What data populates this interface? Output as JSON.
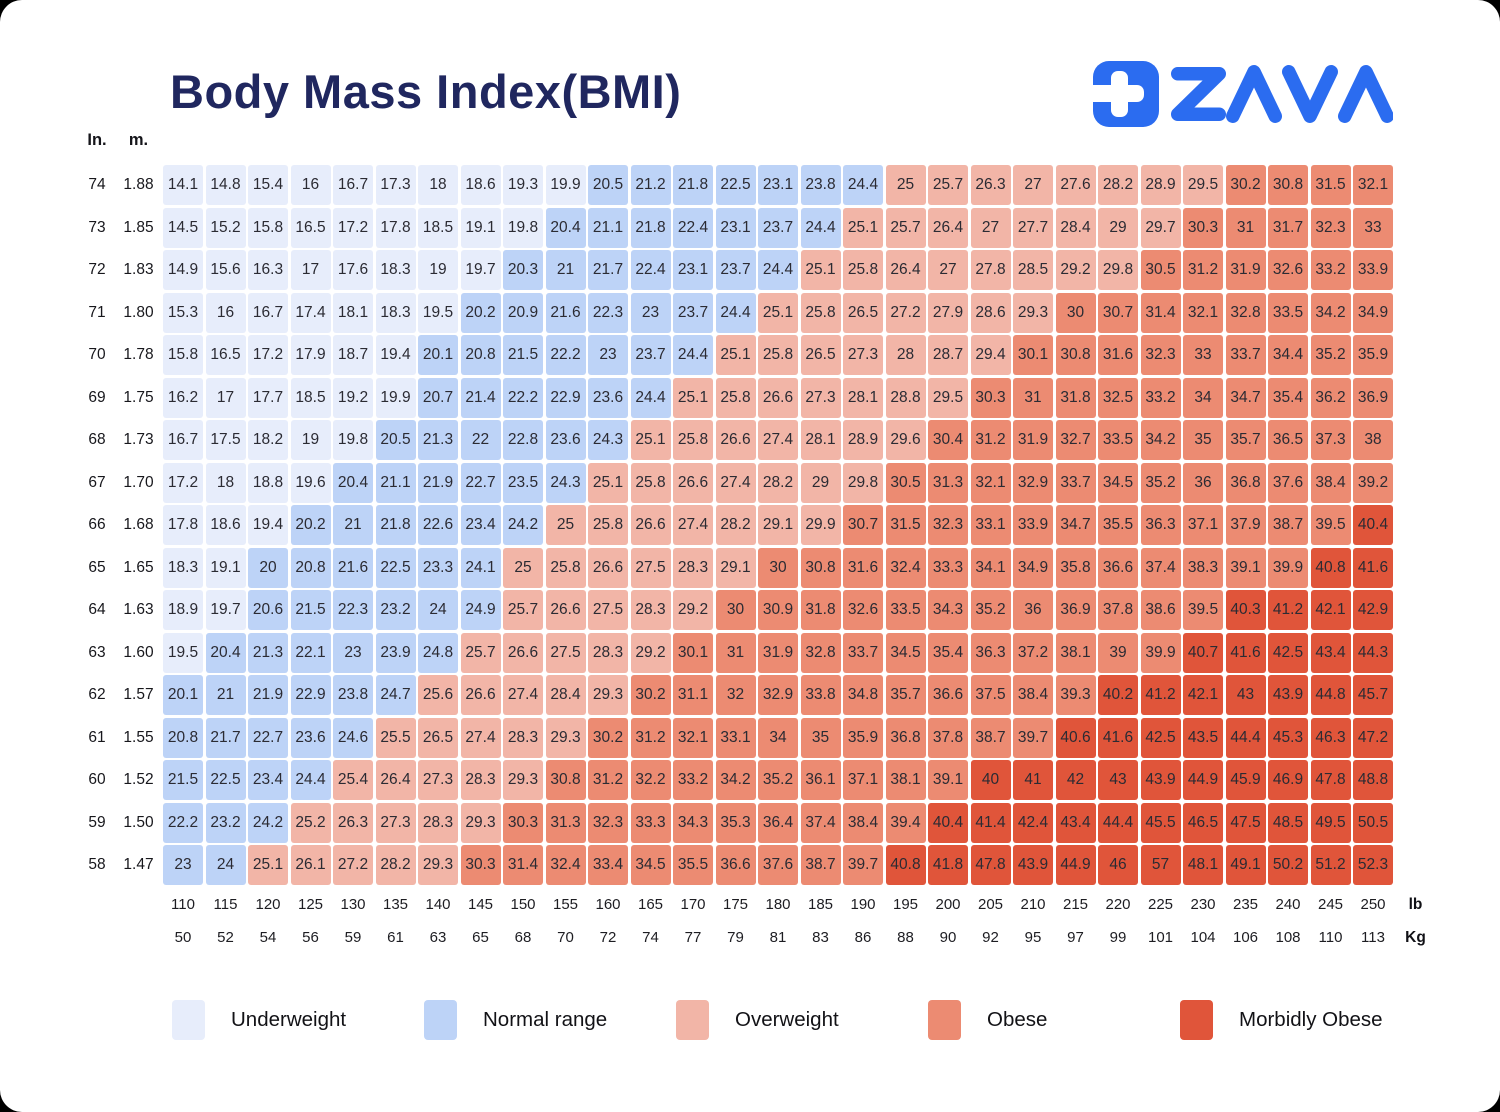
{
  "page": {
    "title": "Body Mass Index(BMI)",
    "brand": "ZAVA"
  },
  "axes": {
    "in": "In.",
    "m": "m.",
    "lb": "lb",
    "kg": "Kg"
  },
  "chart_data": {
    "type": "heatmap",
    "title": "Body Mass Index(BMI)",
    "x_axis_label_lb": "lb",
    "x_axis_label_kg": "Kg",
    "y_axis_label_in": "In.",
    "y_axis_label_m": "m.",
    "weights_lb": [
      110,
      115,
      120,
      125,
      130,
      135,
      140,
      145,
      150,
      155,
      160,
      165,
      170,
      175,
      180,
      185,
      190,
      195,
      200,
      205,
      210,
      215,
      220,
      225,
      230,
      235,
      240,
      245,
      250
    ],
    "weights_kg": [
      50,
      52,
      54,
      56,
      59,
      61,
      63,
      65,
      68,
      70,
      72,
      74,
      77,
      79,
      81,
      83,
      86,
      88,
      90,
      92,
      95,
      97,
      99,
      101,
      104,
      106,
      108,
      110,
      113
    ],
    "rows": [
      {
        "in": "74",
        "m": "1.88",
        "bmi": [
          "14.1",
          "14.8",
          "15.4",
          "16",
          "16.7",
          "17.3",
          "18",
          "18.6",
          "19.3",
          "19.9",
          "20.5",
          "21.2",
          "21.8",
          "22.5",
          "23.1",
          "23.8",
          "24.4",
          "25",
          "25.7",
          "26.3",
          "27",
          "27.6",
          "28.2",
          "28.9",
          "29.5",
          "30.2",
          "30.8",
          "31.5",
          "32.1"
        ]
      },
      {
        "in": "73",
        "m": "1.85",
        "bmi": [
          "14.5",
          "15.2",
          "15.8",
          "16.5",
          "17.2",
          "17.8",
          "18.5",
          "19.1",
          "19.8",
          "20.4",
          "21.1",
          "21.8",
          "22.4",
          "23.1",
          "23.7",
          "24.4",
          "25.1",
          "25.7",
          "26.4",
          "27",
          "27.7",
          "28.4",
          "29",
          "29.7",
          "30.3",
          "31",
          "31.7",
          "32.3",
          "33"
        ]
      },
      {
        "in": "72",
        "m": "1.83",
        "bmi": [
          "14.9",
          "15.6",
          "16.3",
          "17",
          "17.6",
          "18.3",
          "19",
          "19.7",
          "20.3",
          "21",
          "21.7",
          "22.4",
          "23.1",
          "23.7",
          "24.4",
          "25.1",
          "25.8",
          "26.4",
          "27",
          "27.8",
          "28.5",
          "29.2",
          "29.8",
          "30.5",
          "31.2",
          "31.9",
          "32.6",
          "33.2",
          "33.9"
        ]
      },
      {
        "in": "71",
        "m": "1.80",
        "bmi": [
          "15.3",
          "16",
          "16.7",
          "17.4",
          "18.1",
          "18.3",
          "19.5",
          "20.2",
          "20.9",
          "21.6",
          "22.3",
          "23",
          "23.7",
          "24.4",
          "25.1",
          "25.8",
          "26.5",
          "27.2",
          "27.9",
          "28.6",
          "29.3",
          "30",
          "30.7",
          "31.4",
          "32.1",
          "32.8",
          "33.5",
          "34.2",
          "34.9"
        ]
      },
      {
        "in": "70",
        "m": "1.78",
        "bmi": [
          "15.8",
          "16.5",
          "17.2",
          "17.9",
          "18.7",
          "19.4",
          "20.1",
          "20.8",
          "21.5",
          "22.2",
          "23",
          "23.7",
          "24.4",
          "25.1",
          "25.8",
          "26.5",
          "27.3",
          "28",
          "28.7",
          "29.4",
          "30.1",
          "30.8",
          "31.6",
          "32.3",
          "33",
          "33.7",
          "34.4",
          "35.2",
          "35.9"
        ]
      },
      {
        "in": "69",
        "m": "1.75",
        "bmi": [
          "16.2",
          "17",
          "17.7",
          "18.5",
          "19.2",
          "19.9",
          "20.7",
          "21.4",
          "22.2",
          "22.9",
          "23.6",
          "24.4",
          "25.1",
          "25.8",
          "26.6",
          "27.3",
          "28.1",
          "28.8",
          "29.5",
          "30.3",
          "31",
          "31.8",
          "32.5",
          "33.2",
          "34",
          "34.7",
          "35.4",
          "36.2",
          "36.9"
        ]
      },
      {
        "in": "68",
        "m": "1.73",
        "bmi": [
          "16.7",
          "17.5",
          "18.2",
          "19",
          "19.8",
          "20.5",
          "21.3",
          "22",
          "22.8",
          "23.6",
          "24.3",
          "25.1",
          "25.8",
          "26.6",
          "27.4",
          "28.1",
          "28.9",
          "29.6",
          "30.4",
          "31.2",
          "31.9",
          "32.7",
          "33.5",
          "34.2",
          "35",
          "35.7",
          "36.5",
          "37.3",
          "38"
        ]
      },
      {
        "in": "67",
        "m": "1.70",
        "bmi": [
          "17.2",
          "18",
          "18.8",
          "19.6",
          "20.4",
          "21.1",
          "21.9",
          "22.7",
          "23.5",
          "24.3",
          "25.1",
          "25.8",
          "26.6",
          "27.4",
          "28.2",
          "29",
          "29.8",
          "30.5",
          "31.3",
          "32.1",
          "32.9",
          "33.7",
          "34.5",
          "35.2",
          "36",
          "36.8",
          "37.6",
          "38.4",
          "39.2"
        ]
      },
      {
        "in": "66",
        "m": "1.68",
        "bmi": [
          "17.8",
          "18.6",
          "19.4",
          "20.2",
          "21",
          "21.8",
          "22.6",
          "23.4",
          "24.2",
          "25",
          "25.8",
          "26.6",
          "27.4",
          "28.2",
          "29.1",
          "29.9",
          "30.7",
          "31.5",
          "32.3",
          "33.1",
          "33.9",
          "34.7",
          "35.5",
          "36.3",
          "37.1",
          "37.9",
          "38.7",
          "39.5",
          "40.4"
        ]
      },
      {
        "in": "65",
        "m": "1.65",
        "bmi": [
          "18.3",
          "19.1",
          "20",
          "20.8",
          "21.6",
          "22.5",
          "23.3",
          "24.1",
          "25",
          "25.8",
          "26.6",
          "27.5",
          "28.3",
          "29.1",
          "30",
          "30.8",
          "31.6",
          "32.4",
          "33.3",
          "34.1",
          "34.9",
          "35.8",
          "36.6",
          "37.4",
          "38.3",
          "39.1",
          "39.9",
          "40.8",
          "41.6"
        ]
      },
      {
        "in": "64",
        "m": "1.63",
        "bmi": [
          "18.9",
          "19.7",
          "20.6",
          "21.5",
          "22.3",
          "23.2",
          "24",
          "24.9",
          "25.7",
          "26.6",
          "27.5",
          "28.3",
          "29.2",
          "30",
          "30.9",
          "31.8",
          "32.6",
          "33.5",
          "34.3",
          "35.2",
          "36",
          "36.9",
          "37.8",
          "38.6",
          "39.5",
          "40.3",
          "41.2",
          "42.1",
          "42.9"
        ]
      },
      {
        "in": "63",
        "m": "1.60",
        "bmi": [
          "19.5",
          "20.4",
          "21.3",
          "22.1",
          "23",
          "23.9",
          "24.8",
          "25.7",
          "26.6",
          "27.5",
          "28.3",
          "29.2",
          "30.1",
          "31",
          "31.9",
          "32.8",
          "33.7",
          "34.5",
          "35.4",
          "36.3",
          "37.2",
          "38.1",
          "39",
          "39.9",
          "40.7",
          "41.6",
          "42.5",
          "43.4",
          "44.3"
        ]
      },
      {
        "in": "62",
        "m": "1.57",
        "bmi": [
          "20.1",
          "21",
          "21.9",
          "22.9",
          "23.8",
          "24.7",
          "25.6",
          "26.6",
          "27.4",
          "28.4",
          "29.3",
          "30.2",
          "31.1",
          "32",
          "32.9",
          "33.8",
          "34.8",
          "35.7",
          "36.6",
          "37.5",
          "38.4",
          "39.3",
          "40.2",
          "41.2",
          "42.1",
          "43",
          "43.9",
          "44.8",
          "45.7"
        ]
      },
      {
        "in": "61",
        "m": "1.55",
        "bmi": [
          "20.8",
          "21.7",
          "22.7",
          "23.6",
          "24.6",
          "25.5",
          "26.5",
          "27.4",
          "28.3",
          "29.3",
          "30.2",
          "31.2",
          "32.1",
          "33.1",
          "34",
          "35",
          "35.9",
          "36.8",
          "37.8",
          "38.7",
          "39.7",
          "40.6",
          "41.6",
          "42.5",
          "43.5",
          "44.4",
          "45.3",
          "46.3",
          "47.2"
        ]
      },
      {
        "in": "60",
        "m": "1.52",
        "bmi": [
          "21.5",
          "22.5",
          "23.4",
          "24.4",
          "25.4",
          "26.4",
          "27.3",
          "28.3",
          "29.3",
          "30.8",
          "31.2",
          "32.2",
          "33.2",
          "34.2",
          "35.2",
          "36.1",
          "37.1",
          "38.1",
          "39.1",
          "40",
          "41",
          "42",
          "43",
          "43.9",
          "44.9",
          "45.9",
          "46.9",
          "47.8",
          "48.8"
        ]
      },
      {
        "in": "59",
        "m": "1.50",
        "bmi": [
          "22.2",
          "23.2",
          "24.2",
          "25.2",
          "26.3",
          "27.3",
          "28.3",
          "29.3",
          "30.3",
          "31.3",
          "32.3",
          "33.3",
          "34.3",
          "35.3",
          "36.4",
          "37.4",
          "38.4",
          "39.4",
          "40.4",
          "41.4",
          "42.4",
          "43.4",
          "44.4",
          "45.5",
          "46.5",
          "47.5",
          "48.5",
          "49.5",
          "50.5"
        ]
      },
      {
        "in": "58",
        "m": "1.47",
        "bmi": [
          "23",
          "24",
          "25.1",
          "26.1",
          "27.2",
          "28.2",
          "29.3",
          "30.3",
          "31.4",
          "32.4",
          "33.4",
          "34.5",
          "35.5",
          "36.6",
          "37.6",
          "38.7",
          "39.7",
          "40.8",
          "41.8",
          "47.8",
          "43.9",
          "44.9",
          "46",
          "57",
          "48.1",
          "49.1",
          "50.2",
          "51.2",
          "52.3"
        ]
      }
    ],
    "category_thresholds": {
      "normal_min": 20,
      "overweight_min": 25,
      "obese_min": 30,
      "morbidly_obese_min": 40
    },
    "colors": {
      "underweight": "#e7edfb",
      "normal": "#bdd3f7",
      "overweight": "#f2b5a7",
      "obese": "#ec8b72",
      "morbidly_obese": "#e0553a"
    },
    "legend": [
      {
        "label": "Underweight",
        "category": "underweight"
      },
      {
        "label": "Normal range",
        "category": "normal"
      },
      {
        "label": "Overweight",
        "category": "overweight"
      },
      {
        "label": "Obese",
        "category": "obese"
      },
      {
        "label": "Morbidly Obese",
        "category": "morbidly_obese"
      }
    ]
  }
}
